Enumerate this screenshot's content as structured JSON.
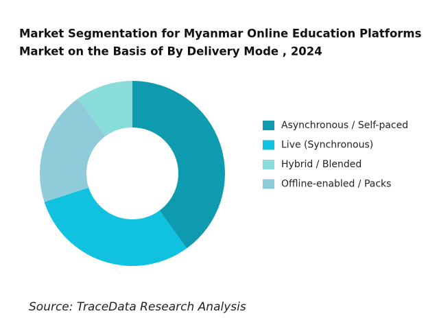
{
  "chart_data": {
    "type": "donut",
    "title": [
      "Market Segmentation for Myanmar Online Education Platforms",
      "Market on the Basis of  By Delivery Mode , 2024"
    ],
    "categories": [
      "Asynchronous / Self-paced",
      "Live (Synchronous)",
      "Hybrid / Blended",
      "Offline-enabled / Packs"
    ],
    "values": [
      40,
      30,
      10,
      20
    ],
    "colors": [
      "#0e9aaf",
      "#10c2e0",
      "#8adcda",
      "#90cbd9"
    ],
    "legend": "right",
    "source": "Source: TraceData Research Analysis"
  }
}
